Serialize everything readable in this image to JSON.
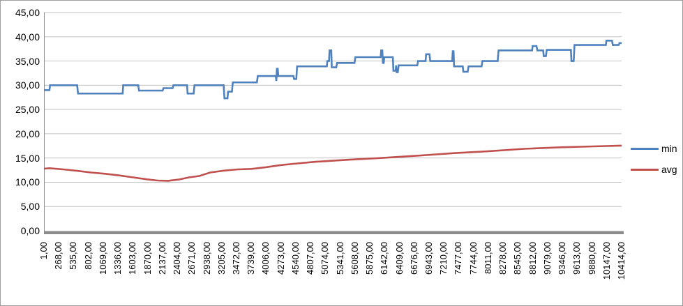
{
  "chart_data": {
    "type": "line",
    "title": "",
    "grid": {
      "horizontal": true,
      "color": "#c3c3c3"
    },
    "axis_color": "#8c8c8c",
    "zero_axis_bar_color": "#8c8c8c",
    "legend": {
      "position": "right",
      "entries": [
        {
          "label": "min",
          "color": "#4F81BD"
        },
        {
          "label": "avg",
          "color": "#C0504D"
        }
      ]
    },
    "y_axis": {
      "min": 0,
      "max": 45,
      "step": 5,
      "tick_labels": [
        "0,00",
        "5,00",
        "10,00",
        "15,00",
        "20,00",
        "25,00",
        "30,00",
        "35,00",
        "40,00",
        "45,00"
      ]
    },
    "x_axis": {
      "min": 1,
      "max": 10414,
      "tick_start": 1,
      "tick_step": 267,
      "tick_label_rotation_deg": -90,
      "tick_labels": [
        "1,00",
        "268,00",
        "535,00",
        "802,00",
        "1069,00",
        "1336,00",
        "1603,00",
        "1870,00",
        "2137,00",
        "2404,00",
        "2671,00",
        "2938,00",
        "3205,00",
        "3472,00",
        "3739,00",
        "4006,00",
        "4273,00",
        "4540,00",
        "4807,00",
        "5074,00",
        "5341,00",
        "5608,00",
        "5875,00",
        "6142,00",
        "6409,00",
        "6676,00",
        "6943,00",
        "7210,00",
        "7477,00",
        "7744,00",
        "8011,00",
        "8278,00",
        "8545,00",
        "8812,00",
        "9079,00",
        "9346,00",
        "9613,00",
        "9880,00",
        "10147,00",
        "10414,00"
      ]
    },
    "series": [
      {
        "name": "min",
        "color": "#4F81BD",
        "stroke_width": 2.6,
        "points": [
          [
            1,
            29
          ],
          [
            100,
            29
          ],
          [
            110,
            30
          ],
          [
            600,
            30
          ],
          [
            615,
            28.3
          ],
          [
            1420,
            28.3
          ],
          [
            1430,
            30
          ],
          [
            1700,
            30
          ],
          [
            1715,
            28.9
          ],
          [
            2140,
            28.9
          ],
          [
            2155,
            29.4
          ],
          [
            2320,
            29.4
          ],
          [
            2335,
            30
          ],
          [
            2580,
            30
          ],
          [
            2590,
            28.3
          ],
          [
            2700,
            28.3
          ],
          [
            2715,
            30
          ],
          [
            3240,
            30
          ],
          [
            3255,
            27.3
          ],
          [
            3310,
            27.3
          ],
          [
            3320,
            28.7
          ],
          [
            3390,
            28.7
          ],
          [
            3405,
            30.6
          ],
          [
            3840,
            30.6
          ],
          [
            3855,
            31.9
          ],
          [
            4180,
            31.9
          ],
          [
            4190,
            30.9
          ],
          [
            4200,
            33.4
          ],
          [
            4215,
            33.4
          ],
          [
            4225,
            31.9
          ],
          [
            4500,
            31.9
          ],
          [
            4510,
            31.3
          ],
          [
            4550,
            31.3
          ],
          [
            4565,
            33.9
          ],
          [
            5100,
            33.9
          ],
          [
            5110,
            35
          ],
          [
            5140,
            35
          ],
          [
            5150,
            37.2
          ],
          [
            5180,
            37.2
          ],
          [
            5190,
            33.7
          ],
          [
            5270,
            33.7
          ],
          [
            5285,
            34.6
          ],
          [
            5600,
            34.6
          ],
          [
            5615,
            35.8
          ],
          [
            6070,
            35.8
          ],
          [
            6080,
            37.2
          ],
          [
            6100,
            37.2
          ],
          [
            6110,
            34.6
          ],
          [
            6125,
            34.6
          ],
          [
            6135,
            35.8
          ],
          [
            6290,
            35.8
          ],
          [
            6300,
            33
          ],
          [
            6340,
            33
          ],
          [
            6350,
            34.1
          ],
          [
            6360,
            32.7
          ],
          [
            6380,
            32.7
          ],
          [
            6395,
            34.1
          ],
          [
            6730,
            34.1
          ],
          [
            6745,
            35
          ],
          [
            6880,
            35
          ],
          [
            6890,
            36.4
          ],
          [
            6950,
            36.4
          ],
          [
            6965,
            35
          ],
          [
            7360,
            35
          ],
          [
            7370,
            37
          ],
          [
            7385,
            37
          ],
          [
            7395,
            33.9
          ],
          [
            7550,
            33.9
          ],
          [
            7560,
            32.8
          ],
          [
            7640,
            32.8
          ],
          [
            7655,
            33.9
          ],
          [
            7890,
            33.9
          ],
          [
            7905,
            35
          ],
          [
            8180,
            35
          ],
          [
            8195,
            37.2
          ],
          [
            8800,
            37.2
          ],
          [
            8810,
            38.1
          ],
          [
            8880,
            38.1
          ],
          [
            8895,
            37.2
          ],
          [
            9000,
            37.2
          ],
          [
            9010,
            36
          ],
          [
            9050,
            36
          ],
          [
            9065,
            37.3
          ],
          [
            9500,
            37.3
          ],
          [
            9510,
            35
          ],
          [
            9550,
            35
          ],
          [
            9565,
            38.3
          ],
          [
            10130,
            38.3
          ],
          [
            10140,
            39.2
          ],
          [
            10240,
            39.2
          ],
          [
            10255,
            38.3
          ],
          [
            10360,
            38.3
          ],
          [
            10375,
            38.7
          ],
          [
            10414,
            38.7
          ]
        ]
      },
      {
        "name": "avg",
        "color": "#C0504D",
        "stroke_width": 2.6,
        "points": [
          [
            1,
            12.8
          ],
          [
            100,
            12.9
          ],
          [
            350,
            12.65
          ],
          [
            600,
            12.35
          ],
          [
            855,
            12.0
          ],
          [
            1105,
            11.75
          ],
          [
            1360,
            11.4
          ],
          [
            1610,
            11.0
          ],
          [
            1860,
            10.6
          ],
          [
            2050,
            10.35
          ],
          [
            2240,
            10.3
          ],
          [
            2430,
            10.55
          ],
          [
            2615,
            11.0
          ],
          [
            2805,
            11.3
          ],
          [
            2995,
            12.0
          ],
          [
            3245,
            12.4
          ],
          [
            3495,
            12.65
          ],
          [
            3745,
            12.75
          ],
          [
            4000,
            13.1
          ],
          [
            4250,
            13.5
          ],
          [
            4500,
            13.8
          ],
          [
            4880,
            14.2
          ],
          [
            5510,
            14.65
          ],
          [
            6075,
            15.0
          ],
          [
            6765,
            15.5
          ],
          [
            7395,
            16.0
          ],
          [
            8025,
            16.4
          ],
          [
            8655,
            16.9
          ],
          [
            9280,
            17.2
          ],
          [
            9910,
            17.4
          ],
          [
            10414,
            17.55
          ]
        ]
      }
    ]
  }
}
